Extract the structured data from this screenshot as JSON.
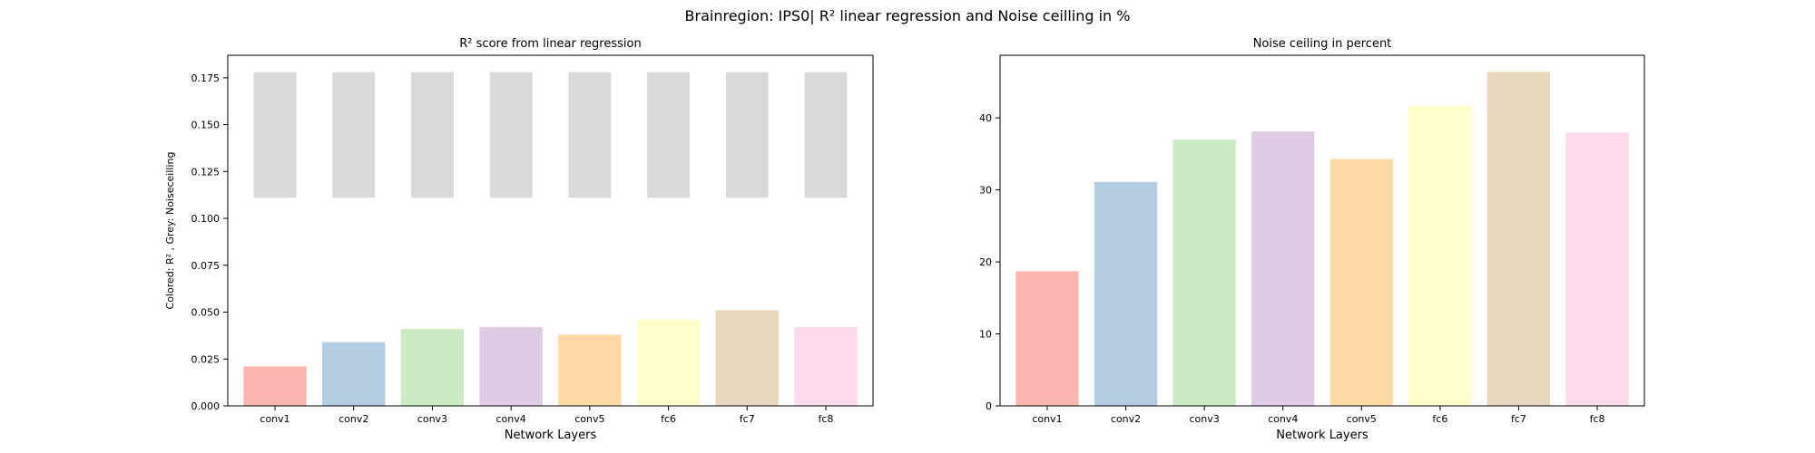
{
  "figure": {
    "suptitle": "Brainregion: IPS0| R² linear regression and Noise ceilling in %"
  },
  "chart_data": [
    {
      "type": "bar",
      "title": "R² score from linear regression",
      "xlabel": "Network Layers",
      "ylabel": "Colored: R² , Grey: Noiseceilling",
      "categories": [
        "conv1",
        "conv2",
        "conv3",
        "conv4",
        "conv5",
        "fc6",
        "fc7",
        "fc8"
      ],
      "series": [
        {
          "values": [
            0.021,
            0.034,
            0.041,
            0.042,
            0.038,
            0.046,
            0.051,
            0.042
          ]
        }
      ],
      "noise_ceiling_bars": {
        "bottom": 0.111,
        "top": 0.178
      },
      "ylim": [
        0,
        0.187
      ],
      "yticks": [
        "0.000",
        "0.025",
        "0.050",
        "0.075",
        "0.100",
        "0.125",
        "0.150",
        "0.175"
      ],
      "grid": false,
      "colors": [
        "#fbb4ae",
        "#b3cde3",
        "#ccebc5",
        "#decbe4",
        "#fed9a6",
        "#ffffcc",
        "#e5d8bd",
        "#fddaec"
      ],
      "ceiling_color": "#d9d9d9"
    },
    {
      "type": "bar",
      "title": "Noise ceiling in percent",
      "xlabel": "Network Layers",
      "ylabel": "",
      "categories": [
        "conv1",
        "conv2",
        "conv3",
        "conv4",
        "conv5",
        "fc6",
        "fc7",
        "fc8"
      ],
      "series": [
        {
          "values": [
            18.7,
            31.1,
            37.0,
            38.1,
            34.3,
            41.7,
            46.4,
            38.0
          ]
        }
      ],
      "ylim": [
        0,
        48.7
      ],
      "yticks": [
        "0",
        "10",
        "20",
        "30",
        "40"
      ],
      "grid": false,
      "colors": [
        "#fbb4ae",
        "#b3cde3",
        "#ccebc5",
        "#decbe4",
        "#fed9a6",
        "#ffffcc",
        "#e5d8bd",
        "#fddaec"
      ]
    }
  ]
}
